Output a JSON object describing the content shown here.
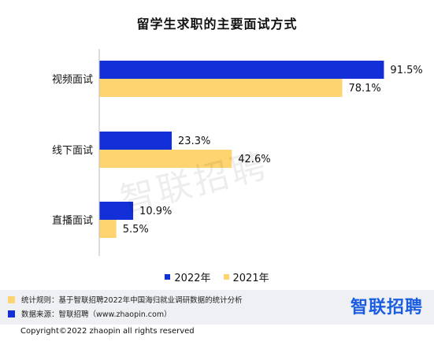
{
  "title": "留学生求职的主要面试方式",
  "watermark": "智联招聘",
  "colors": {
    "s2022": "#1330d8",
    "s2021": "#fdd46f",
    "footer_bg": "#eef0f3",
    "brand": "#1a5de0"
  },
  "chart_data": {
    "type": "bar",
    "orientation": "horizontal",
    "title": "留学生求职的主要面试方式",
    "categories": [
      "视频面试",
      "线下面试",
      "直播面试"
    ],
    "series": [
      {
        "name": "2022年",
        "values": [
          91.5,
          23.3,
          10.9
        ],
        "labels": [
          "91.5%",
          "23.3%",
          "10.9%"
        ]
      },
      {
        "name": "2021年",
        "values": [
          78.1,
          42.6,
          5.5
        ],
        "labels": [
          "78.1%",
          "42.6%",
          "5.5%"
        ]
      }
    ],
    "xlim": [
      0,
      100
    ],
    "grid": false,
    "legend_position": "bottom"
  },
  "legend": {
    "s2022": "2022年",
    "s2021": "2021年"
  },
  "footer": {
    "rules": "统计规则：基于智联招聘2022年中国海归就业调研数据的统计分析",
    "source": "数据来源：智联招聘（www.zhaopin.com）",
    "brand": "智联招聘",
    "copyright": "Copyright©2022 zhaopin all rights reserved"
  }
}
